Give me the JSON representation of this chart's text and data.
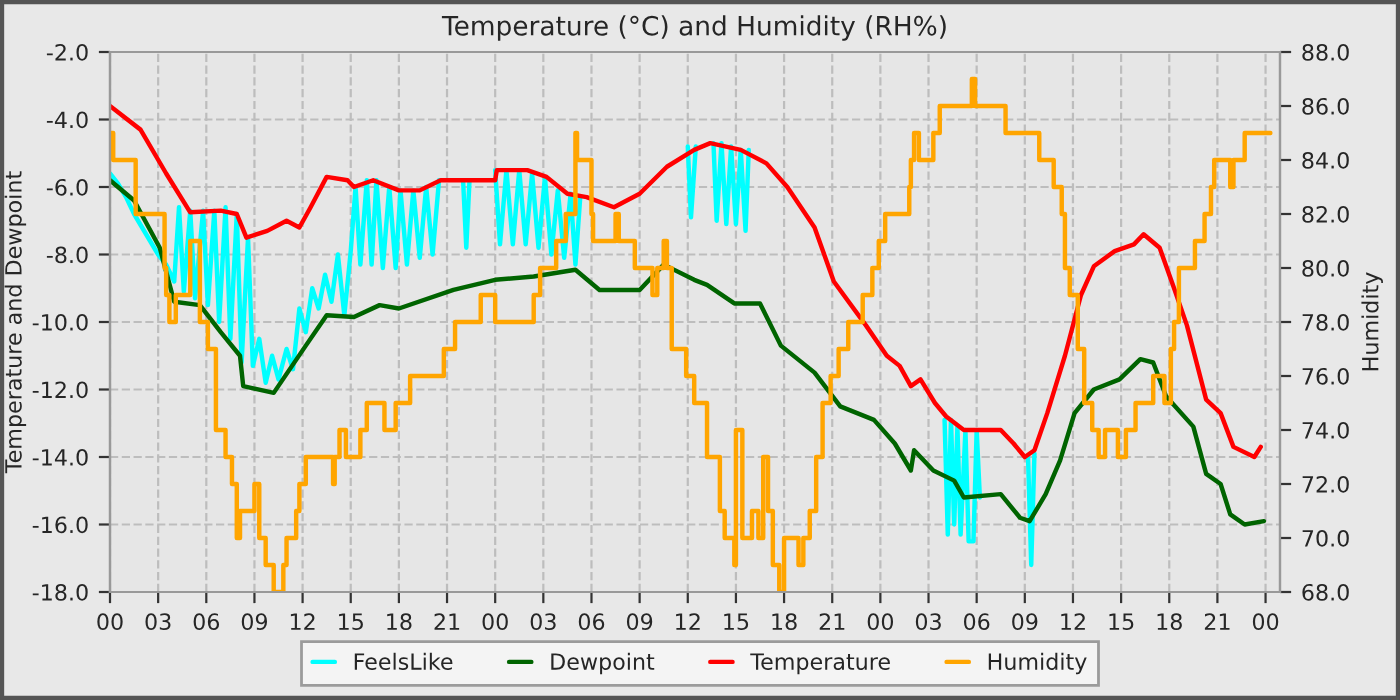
{
  "chart_data": {
    "type": "line",
    "title": "Temperature (°C) and Humidity (RH%)",
    "ylabel": "Temperature and Dewpoint",
    "y2label": "Humidity",
    "xlim": [
      0,
      72.9
    ],
    "xticks": [
      {
        "value": 0,
        "label": "00"
      },
      {
        "value": 3,
        "label": "03"
      },
      {
        "value": 6,
        "label": "06"
      },
      {
        "value": 9,
        "label": "09"
      },
      {
        "value": 12,
        "label": "12"
      },
      {
        "value": 15,
        "label": "15"
      },
      {
        "value": 18,
        "label": "18"
      },
      {
        "value": 21,
        "label": "21"
      },
      {
        "value": 24,
        "label": "00"
      },
      {
        "value": 27,
        "label": "03"
      },
      {
        "value": 30,
        "label": "06"
      },
      {
        "value": 33,
        "label": "09"
      },
      {
        "value": 36,
        "label": "12"
      },
      {
        "value": 39,
        "label": "15"
      },
      {
        "value": 42,
        "label": "18"
      },
      {
        "value": 45,
        "label": "21"
      },
      {
        "value": 48,
        "label": "00"
      },
      {
        "value": 51,
        "label": "03"
      },
      {
        "value": 54,
        "label": "06"
      },
      {
        "value": 57,
        "label": "09"
      },
      {
        "value": 60,
        "label": "12"
      },
      {
        "value": 63,
        "label": "15"
      },
      {
        "value": 66,
        "label": "18"
      },
      {
        "value": 69,
        "label": "21"
      },
      {
        "value": 72,
        "label": "00"
      }
    ],
    "ylim": [
      -18,
      -2
    ],
    "yticks": [
      {
        "value": -18,
        "label": "-18.0"
      },
      {
        "value": -16,
        "label": "-16.0"
      },
      {
        "value": -14,
        "label": "-14.0"
      },
      {
        "value": -12,
        "label": "-12.0"
      },
      {
        "value": -10,
        "label": "-10.0"
      },
      {
        "value": -8,
        "label": "-8.0"
      },
      {
        "value": -6,
        "label": "-6.0"
      },
      {
        "value": -4,
        "label": "-4.0"
      },
      {
        "value": -2,
        "label": "-2.0"
      }
    ],
    "y2lim": [
      68,
      88
    ],
    "y2ticks": [
      {
        "value": 68,
        "label": "68.0"
      },
      {
        "value": 70,
        "label": "70.0"
      },
      {
        "value": 72,
        "label": "72.0"
      },
      {
        "value": 74,
        "label": "74.0"
      },
      {
        "value": 76,
        "label": "76.0"
      },
      {
        "value": 78,
        "label": "78.0"
      },
      {
        "value": 80,
        "label": "80.0"
      },
      {
        "value": 82,
        "label": "82.0"
      },
      {
        "value": 84,
        "label": "84.0"
      },
      {
        "value": 86,
        "label": "86.0"
      },
      {
        "value": 88,
        "label": "88.0"
      }
    ],
    "grid": true,
    "legend": "bottom",
    "marker": "none",
    "line_style": "solid",
    "series": [
      {
        "name": "FeelsLike",
        "color": "#00ffff",
        "x": [
          0,
          0.5,
          1,
          1.5,
          2,
          2.5,
          3,
          3.5,
          4,
          4.3,
          4.6,
          5.0,
          5.3,
          5.8,
          6.1,
          6.5,
          6.8,
          7.2,
          7.5,
          7.9,
          8.2,
          8.6,
          8.9,
          9.3,
          9.7,
          10.1,
          10.5,
          11.0,
          11.4,
          11.8,
          12.2,
          12.6,
          13.0,
          13.4,
          13.8,
          14.2,
          14.6,
          15.0,
          15.3,
          15.6,
          16.0,
          16.3,
          16.6,
          17.0,
          17.4,
          17.8,
          18.1,
          18.5,
          18.9,
          19.3,
          19.7,
          20.1,
          20.5,
          21.0,
          22.0,
          22.2,
          22.4,
          23.0,
          24.0,
          24.3,
          24.7,
          25.1,
          25.5,
          25.9,
          26.3,
          26.7,
          27.1,
          27.5,
          27.9,
          28.3,
          28.7,
          29.0,
          29.3,
          30.0,
          36.0,
          36.2,
          36.5,
          37.0,
          37.6,
          37.8,
          38.1,
          38.4,
          38.7,
          39.0,
          39.3,
          39.6,
          39.8,
          45.0,
          52.0,
          52.2,
          52.4,
          52.6,
          52.8,
          53.0,
          53.3,
          53.5,
          53.8,
          54.0,
          54.2,
          55.0,
          57.2,
          57.4,
          57.6
        ],
        "values": [
          -5.6,
          -5.9,
          -6.3,
          -6.8,
          -7.2,
          -7.6,
          -8.0,
          -8.3,
          -8.8,
          -6.6,
          -9.1,
          -6.7,
          -9.3,
          -6.7,
          -9.5,
          -6.7,
          -10.0,
          -6.6,
          -10.5,
          -6.8,
          -11.2,
          -7.5,
          -11.3,
          -10.5,
          -11.8,
          -11.0,
          -11.7,
          -10.8,
          -11.4,
          -9.6,
          -10.3,
          -9.0,
          -9.6,
          -8.6,
          -9.4,
          -8.0,
          -9.8,
          -7.9,
          -6.0,
          -8.3,
          -5.8,
          -8.3,
          -5.8,
          -8.4,
          -6.0,
          -8.4,
          -6.1,
          -8.3,
          -6.1,
          -8.1,
          -6.0,
          -8.0,
          -5.8,
          null,
          -5.8,
          -7.8,
          -5.8,
          null,
          -5.5,
          -7.7,
          -5.5,
          -7.7,
          -5.5,
          -7.7,
          -5.6,
          -7.8,
          -5.7,
          -8.0,
          -6.1,
          -8.1,
          -6.2,
          -8.3,
          -6.3,
          null,
          -4.8,
          -6.9,
          -4.8,
          null,
          -4.7,
          -7.0,
          -4.7,
          -7.1,
          -4.8,
          -7.1,
          -4.9,
          -7.3,
          -4.9,
          null,
          -12.9,
          -16.3,
          -12.9,
          -16.0,
          -13.1,
          -16.3,
          -13.2,
          -16.5,
          -16.5,
          -13.2,
          -15.2,
          null,
          -14.0,
          -17.2,
          -13.9
        ]
      },
      {
        "name": "Dewpoint",
        "color": "#006400",
        "x": [
          0,
          1.5,
          3.1,
          4,
          5.6,
          6.9,
          8.1,
          8.3,
          10.2,
          12.2,
          13.5,
          15.2,
          16.8,
          18,
          21.4,
          24,
          26.4,
          29,
          30.5,
          33,
          34.5,
          36.4,
          37.2,
          38.9,
          40.5,
          41.8,
          43.9,
          45.5,
          47.6,
          48.9,
          49.9,
          50.1,
          51.3,
          52.6,
          53.2,
          55.5,
          56.7,
          57.3,
          58.3,
          59.2,
          60.1,
          61.3,
          62.9,
          64.2,
          65,
          65.8,
          67.5,
          68.3,
          69.2,
          69.8,
          70.7,
          71.9
        ],
        "values": [
          -5.8,
          -6.4,
          -7.8,
          -9.4,
          -9.5,
          -10.3,
          -11.0,
          -11.9,
          -12.1,
          -10.7,
          -9.8,
          -9.85,
          -9.5,
          -9.6,
          -9.05,
          -8.75,
          -8.65,
          -8.45,
          -9.05,
          -9.05,
          -8.3,
          -8.75,
          -8.9,
          -9.45,
          -9.45,
          -10.7,
          -11.5,
          -12.5,
          -12.9,
          -13.6,
          -14.4,
          -13.8,
          -14.4,
          -14.7,
          -15.2,
          -15.1,
          -15.8,
          -15.9,
          -15.1,
          -14.1,
          -12.7,
          -12.0,
          -11.7,
          -11.1,
          -11.2,
          -12.2,
          -13.1,
          -14.5,
          -14.8,
          -15.7,
          -16.0,
          -15.9
        ]
      },
      {
        "name": "Temperature",
        "color": "#ff0000",
        "x": [
          0,
          1.9,
          3.5,
          5,
          6.9,
          7.9,
          8.5,
          9.8,
          11,
          11.8,
          12.5,
          13.5,
          14.8,
          15.2,
          16.4,
          18,
          19.3,
          20.6,
          24,
          24.1,
          26,
          27.2,
          28.5,
          29.7,
          31.4,
          33,
          34.7,
          36.4,
          37.4,
          39.3,
          40.9,
          42.2,
          43.9,
          45.1,
          47.1,
          48.4,
          49.2,
          49.9,
          50.5,
          51.4,
          52.1,
          53.2,
          55.5,
          56.3,
          57,
          57.6,
          58.4,
          59.5,
          60.5,
          61.3,
          62.6,
          63.8,
          64.4,
          65.4,
          66.3,
          67.1,
          68.3,
          69.2,
          70,
          71.3,
          71.7
        ],
        "values": [
          -3.6,
          -4.3,
          -5.6,
          -6.75,
          -6.7,
          -6.8,
          -7.5,
          -7.3,
          -7.0,
          -7.2,
          -6.6,
          -5.7,
          -5.8,
          -6.0,
          -5.8,
          -6.1,
          -6.1,
          -5.8,
          -5.8,
          -5.5,
          -5.5,
          -5.7,
          -6.2,
          -6.3,
          -6.6,
          -6.2,
          -5.4,
          -4.9,
          -4.7,
          -4.9,
          -5.3,
          -6.0,
          -7.2,
          -8.8,
          -10.1,
          -11.0,
          -11.3,
          -11.9,
          -11.7,
          -12.4,
          -12.8,
          -13.2,
          -13.2,
          -13.6,
          -14.0,
          -13.8,
          -12.7,
          -11.0,
          -9.2,
          -8.35,
          -7.9,
          -7.7,
          -7.4,
          -7.8,
          -9.0,
          -10.1,
          -12.3,
          -12.7,
          -13.7,
          -14.0,
          -13.7
        ]
      },
      {
        "name": "Humidity",
        "color": "#ffa500",
        "type": "step",
        "axis": "y2",
        "x": [
          0,
          0.2,
          1.6,
          3.4,
          3.5,
          3.7,
          4.1,
          5.0,
          5.6,
          6.1,
          6.6,
          7.2,
          7.6,
          7.9,
          8.1,
          9.0,
          9.3,
          9.7,
          10.2,
          10.8,
          11.0,
          11.6,
          11.8,
          12.2,
          13.9,
          14.0,
          14.3,
          14.7,
          15.6,
          16.0,
          17.1,
          17.8,
          18.7,
          20.8,
          21.5,
          23.1,
          24.0,
          26.4,
          26.8,
          27.8,
          28.4,
          29.0,
          29.1,
          30.0,
          30.1,
          31.5,
          31.7,
          32.7,
          33.8,
          34.1,
          34.5,
          34.7,
          35.0,
          35.9,
          36.4,
          37.2,
          38.0,
          38.3,
          38.9,
          39.0,
          39.4,
          40.0,
          40.4,
          40.7,
          41.0,
          41.3,
          41.7,
          42.0,
          42.9,
          43.2,
          43.6,
          44.0,
          44.4,
          44.9,
          45.4,
          46.0,
          46.9,
          47.5,
          47.9,
          48.3,
          49.8,
          49.9,
          50.1,
          50.4,
          51.3,
          51.7,
          53.7,
          53.9,
          55.8,
          57.9,
          58.8,
          59.3,
          59.5,
          59.8,
          60.3,
          60.7,
          61.2,
          61.6,
          62.0,
          62.8,
          63.3,
          63.9,
          65.0,
          65.7,
          66.1,
          66.3,
          66.6,
          67.6,
          68.2,
          68.6,
          68.8,
          69.8,
          70.0,
          70.7,
          72.3
        ],
        "values": [
          85,
          84,
          82,
          80,
          79,
          78,
          79,
          81,
          78,
          77,
          74,
          73,
          72,
          70,
          71,
          72,
          70,
          69,
          68,
          69,
          70,
          71,
          72,
          73,
          72,
          73,
          74,
          73,
          74,
          75,
          74,
          75,
          76,
          77,
          78,
          79,
          78,
          79,
          80,
          81,
          82,
          85,
          84,
          82,
          81,
          82,
          81,
          80,
          79,
          80,
          81,
          80,
          77,
          76,
          75,
          73,
          71,
          70,
          69,
          74,
          70,
          71,
          70,
          73,
          71,
          69,
          68,
          70,
          69,
          70,
          71,
          73,
          75,
          76,
          77,
          78,
          79,
          80,
          81,
          82,
          83,
          84,
          85,
          84,
          85,
          86,
          87,
          86,
          85,
          84,
          83,
          82,
          80,
          79,
          77,
          75,
          74,
          73,
          74,
          73,
          74,
          75,
          76,
          75,
          77,
          78,
          80,
          81,
          82,
          83,
          84,
          83,
          84,
          85,
          85
        ]
      }
    ]
  }
}
